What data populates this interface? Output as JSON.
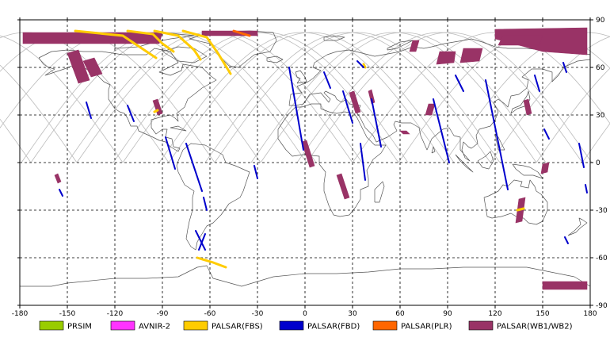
{
  "chart_data": {
    "type": "map",
    "title": "",
    "xlim": [
      -180,
      180
    ],
    "ylim": [
      -90,
      90
    ],
    "x_ticks": [
      -180,
      -150,
      -120,
      -90,
      -60,
      -30,
      0,
      30,
      60,
      90,
      120,
      150,
      180
    ],
    "y_ticks": [
      -90,
      -60,
      -30,
      0,
      30,
      60,
      90
    ],
    "x_tick_labels": [
      "-180",
      "-150",
      "-120",
      "-90",
      "-60",
      "-30",
      "0",
      "30",
      "60",
      "90",
      "120",
      "150",
      "180"
    ],
    "y_tick_labels": [
      "-90",
      "-60",
      "-30",
      "0",
      "30",
      "60",
      "90"
    ],
    "grid": true,
    "grid_style": "dashed",
    "legend_placement": "bottom",
    "legend": [
      {
        "name": "PRSIM",
        "color": "#99cc00"
      },
      {
        "name": "AVNIR-2",
        "color": "#ff33ff"
      },
      {
        "name": "PALSAR(FBS)",
        "color": "#ffcc00"
      },
      {
        "name": "PALSAR(FBD)",
        "color": "#0000cc"
      },
      {
        "name": "PALSAR(PLR)",
        "color": "#ff6600"
      },
      {
        "name": "PALSAR(WB1/WB2)",
        "color": "#993366"
      }
    ],
    "coastline_color": "#555555",
    "orbit_track_color": "#bbbbbb",
    "orbit_track_node_longitudes": [
      -173,
      -144,
      -115,
      -86,
      -57,
      -28,
      1,
      30,
      59,
      88,
      117,
      146,
      175
    ],
    "footprints": {
      "PALSAR(WB1/WB2)": [
        {
          "lon": [
            -178,
            -90,
            -92,
            -178
          ],
          "lat": [
            82,
            82,
            75,
            75
          ]
        },
        {
          "lon": [
            -65,
            -30,
            -30,
            -65
          ],
          "lat": [
            83,
            83,
            80,
            80
          ]
        },
        {
          "lon": [
            -150,
            -143,
            -136,
            -143
          ],
          "lat": [
            69,
            71,
            52,
            50
          ]
        },
        {
          "lon": [
            -140,
            -133,
            -128,
            -135
          ],
          "lat": [
            64,
            66,
            56,
            54
          ]
        },
        {
          "lon": [
            -96,
            -93,
            -90,
            -93
          ],
          "lat": [
            39,
            40,
            31,
            30
          ]
        },
        {
          "lon": [
            -158,
            -156,
            -154,
            -156
          ],
          "lat": [
            -8,
            -7,
            -12,
            -13
          ]
        },
        {
          "lon": [
            -2,
            1,
            6,
            3
          ],
          "lat": [
            13,
            14,
            -2,
            -3
          ]
        },
        {
          "lon": [
            20,
            23,
            28,
            25
          ],
          "lat": [
            -8,
            -7,
            -22,
            -23
          ]
        },
        {
          "lon": [
            28,
            31,
            35,
            32
          ],
          "lat": [
            44,
            45,
            32,
            31
          ]
        },
        {
          "lon": [
            40,
            42,
            44,
            42
          ],
          "lat": [
            45,
            46,
            38,
            37
          ]
        },
        {
          "lon": [
            68,
            72,
            70,
            66
          ],
          "lat": [
            77,
            77,
            70,
            70
          ]
        },
        {
          "lon": [
            78,
            82,
            80,
            76
          ],
          "lat": [
            37,
            37,
            30,
            30
          ]
        },
        {
          "lon": [
            60,
            64,
            66,
            62
          ],
          "lat": [
            20,
            20,
            18,
            18
          ]
        },
        {
          "lon": [
            85,
            95,
            94,
            83
          ],
          "lat": [
            70,
            70,
            63,
            62
          ]
        },
        {
          "lon": [
            100,
            112,
            110,
            98
          ],
          "lat": [
            72,
            72,
            64,
            63
          ]
        },
        {
          "lon": [
            120,
            178,
            178,
            150,
            120
          ],
          "lat": [
            84,
            85,
            68,
            70,
            78
          ]
        },
        {
          "lon": [
            125,
            150,
            148,
            122
          ],
          "lat": [
            80,
            80,
            74,
            74
          ]
        },
        {
          "lon": [
            138,
            141,
            143,
            140
          ],
          "lat": [
            39,
            40,
            31,
            30
          ]
        },
        {
          "lon": [
            150,
            154,
            153,
            149
          ],
          "lat": [
            -1,
            0,
            -6,
            -7
          ]
        },
        {
          "lon": [
            135,
            139,
            137,
            133
          ],
          "lat": [
            -23,
            -22,
            -37,
            -38
          ]
        },
        {
          "lon": [
            150,
            178,
            178,
            150
          ],
          "lat": [
            -75,
            -75,
            -80,
            -80
          ]
        }
      ],
      "PALSAR(FBS)": [
        {
          "lon": [
            -145,
            -115,
            -103,
            -94
          ],
          "lat": [
            83,
            80,
            72,
            66
          ]
        },
        {
          "lon": [
            -112,
            -96,
            -90,
            -83
          ],
          "lat": [
            83,
            81,
            75,
            70
          ]
        },
        {
          "lon": [
            -95,
            -80,
            -70,
            -66
          ],
          "lat": [
            83,
            80,
            71,
            65
          ]
        },
        {
          "lon": [
            -77,
            -62,
            -55,
            -47
          ],
          "lat": [
            83,
            79,
            69,
            56
          ]
        },
        {
          "lon": [
            -68,
            -58,
            -50
          ],
          "lat": [
            -60,
            -63,
            -66
          ]
        },
        {
          "lon": [
            -95,
            -93
          ],
          "lat": [
            32,
            33
          ]
        },
        {
          "lon": [
            134,
            138
          ],
          "lat": [
            -30,
            -29
          ]
        },
        {
          "lon": [
            37,
            38
          ],
          "lat": [
            62,
            60
          ]
        }
      ],
      "PALSAR(PLR)": [
        {
          "lon": [
            -45,
            -35
          ],
          "lat": [
            83,
            80
          ]
        }
      ],
      "PALSAR(FBD)": [
        {
          "lon": [
            -138,
            -135
          ],
          "lat": [
            38,
            28
          ]
        },
        {
          "lon": [
            -112,
            -108
          ],
          "lat": [
            36,
            26
          ]
        },
        {
          "lon": [
            -88,
            -82
          ],
          "lat": [
            16,
            -4
          ]
        },
        {
          "lon": [
            -75,
            -65
          ],
          "lat": [
            12,
            -18
          ]
        },
        {
          "lon": [
            -64,
            -62
          ],
          "lat": [
            -22,
            -30
          ]
        },
        {
          "lon": [
            -69,
            -63
          ],
          "lat": [
            -43,
            -55
          ]
        },
        {
          "lon": [
            -67,
            -63
          ],
          "lat": [
            -55,
            -45
          ]
        },
        {
          "lon": [
            -155,
            -153
          ],
          "lat": [
            -17,
            -21
          ]
        },
        {
          "lon": [
            -32,
            -30
          ],
          "lat": [
            -2,
            -10
          ]
        },
        {
          "lon": [
            -10,
            -1
          ],
          "lat": [
            60,
            8
          ]
        },
        {
          "lon": [
            12,
            16
          ],
          "lat": [
            57,
            47
          ]
        },
        {
          "lon": [
            24,
            30
          ],
          "lat": [
            45,
            25
          ]
        },
        {
          "lon": [
            35,
            38
          ],
          "lat": [
            12,
            -11
          ]
        },
        {
          "lon": [
            42,
            48
          ],
          "lat": [
            40,
            10
          ]
        },
        {
          "lon": [
            33,
            37
          ],
          "lat": [
            64,
            60
          ]
        },
        {
          "lon": [
            81,
            91
          ],
          "lat": [
            40,
            0
          ]
        },
        {
          "lon": [
            95,
            100
          ],
          "lat": [
            55,
            45
          ]
        },
        {
          "lon": [
            114,
            128
          ],
          "lat": [
            52,
            -17
          ]
        },
        {
          "lon": [
            145,
            148
          ],
          "lat": [
            55,
            45
          ]
        },
        {
          "lon": [
            151,
            154
          ],
          "lat": [
            21,
            15
          ]
        },
        {
          "lon": [
            173,
            176
          ],
          "lat": [
            12,
            -3
          ]
        },
        {
          "lon": [
            177,
            178
          ],
          "lat": [
            -14,
            -19
          ]
        },
        {
          "lon": [
            164,
            166
          ],
          "lat": [
            -47,
            -51
          ]
        },
        {
          "lon": [
            163,
            165
          ],
          "lat": [
            63,
            57
          ]
        }
      ]
    }
  }
}
